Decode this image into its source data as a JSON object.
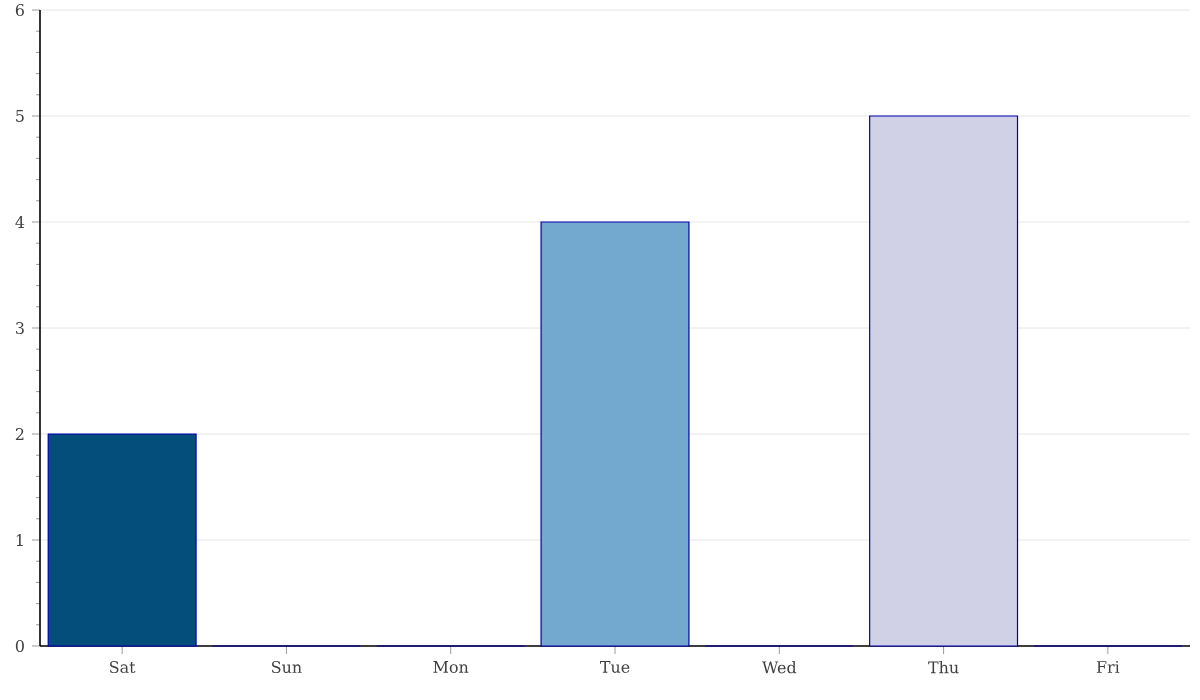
{
  "chart_data": {
    "type": "bar",
    "categories": [
      "Sat",
      "Sun",
      "Mon",
      "Tue",
      "Wed",
      "Thu",
      "Fri"
    ],
    "values": [
      2,
      0,
      0,
      4,
      0,
      5,
      0
    ],
    "colors": [
      "#034e7b",
      "#0570b0",
      "#3690c0",
      "#74a9cf",
      "#a6bddb",
      "#d0d1e6",
      "#f1eef6"
    ],
    "ylim": [
      0,
      6
    ],
    "yticks": [
      0,
      1,
      2,
      3,
      4,
      5,
      6
    ],
    "grid": "y"
  }
}
